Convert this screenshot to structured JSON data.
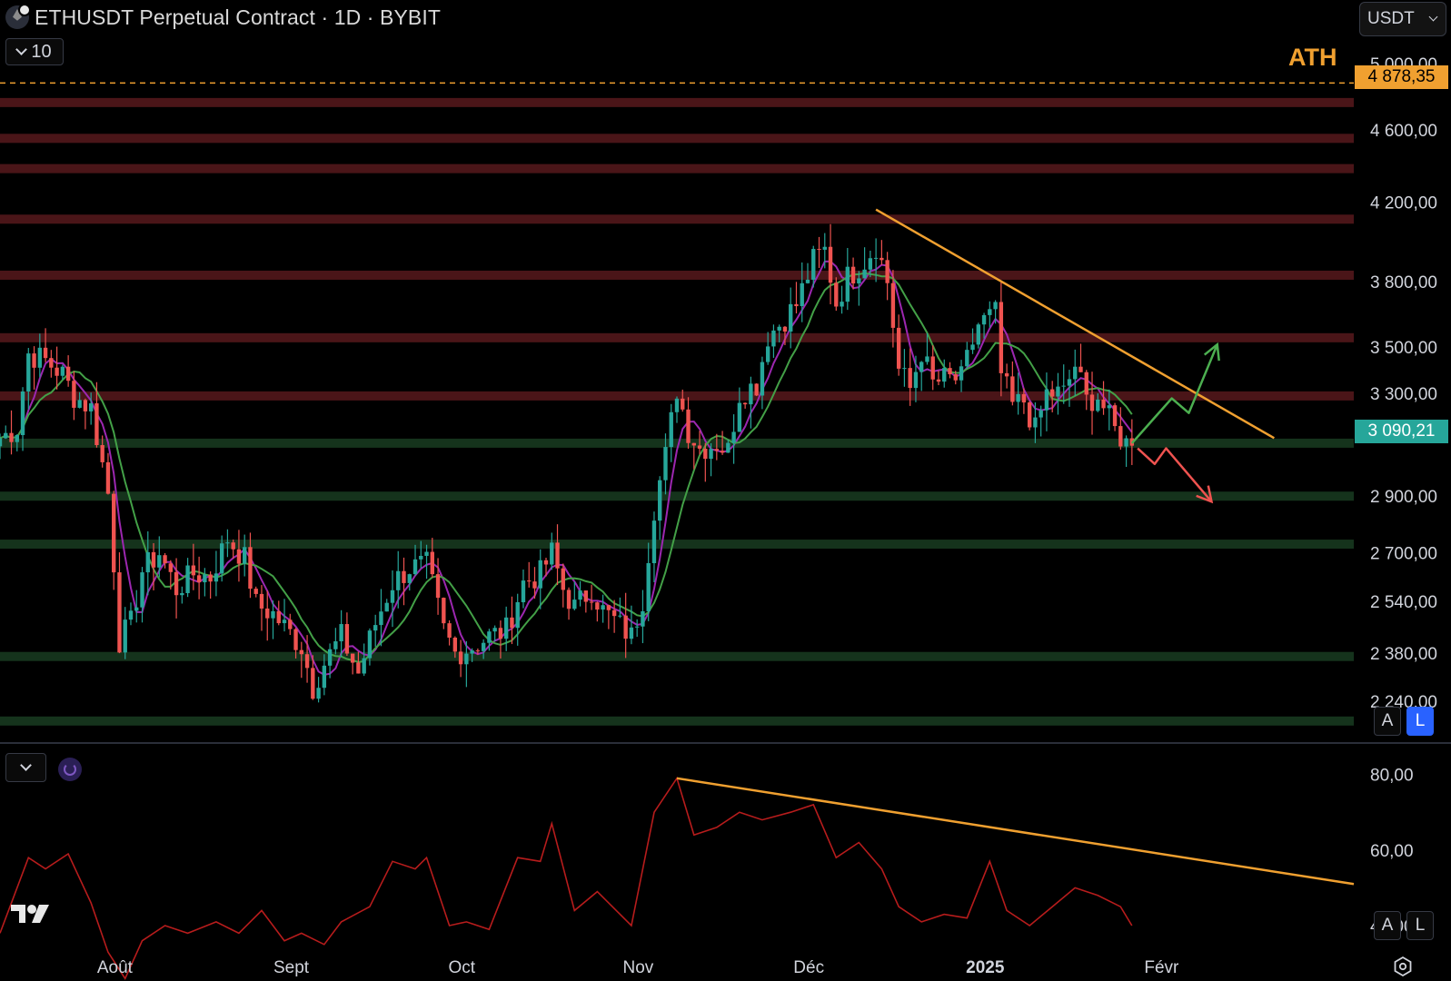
{
  "header": {
    "title": "ETHUSDT Perpetual Contract · 1D · BYBIT",
    "collapse_count": "10",
    "currency": "USDT"
  },
  "annotations": {
    "ath_label": "ATH",
    "ath_price": "4 878,35",
    "last_price": "3 090,21"
  },
  "controls": {
    "auto_label": "A",
    "log_label": "L",
    "osc_auto_label": "A",
    "osc_log_label": "L"
  },
  "colors": {
    "background": "#000000",
    "bull": "#26a69a",
    "bear": "#ef5350",
    "resistance_zone": "#4a1518",
    "support_zone": "#15331c",
    "trendline": "#f0a030",
    "ma_fast": "#9c27b0",
    "ma_slow": "#43a047",
    "osc_line": "#b71c1c",
    "arrow_up": "#4caf50",
    "arrow_down": "#ef5350",
    "accent_blue": "#2962ff"
  },
  "chart_data": [
    {
      "type": "candlestick",
      "title": "ETHUSDT Perpetual Contract · 1D · BYBIT",
      "scale": "log",
      "ylim": [
        2140,
        5150
      ],
      "y_ticks": [
        5000,
        4600,
        4200,
        3800,
        3500,
        3300,
        2900,
        2700,
        2540,
        2380,
        2240
      ],
      "y_tick_labels": [
        "5 000,00",
        "4 600,00",
        "4 200,00",
        "3 800,00",
        "3 500,00",
        "3 300,00",
        "2 900,00",
        "2 700,00",
        "2 540,00",
        "2 380,00",
        "2 240,00"
      ],
      "x_tick_labels": [
        "Août",
        "Sept",
        "Oct",
        "Nov",
        "Déc",
        "2025",
        "Févr"
      ],
      "x_tick_dates": [
        "2024-08-01",
        "2024-09-01",
        "2024-10-01",
        "2024-11-01",
        "2024-12-01",
        "2025-01-01",
        "2025-02-01"
      ],
      "date_range": [
        "2024-07-15",
        "2025-03-10"
      ],
      "ath_level": 4878.35,
      "last_price": 3090.21,
      "resistance_zones": [
        4760,
        4550,
        4380,
        4110,
        3830,
        3540,
        3290
      ],
      "support_zones": [
        3100,
        2900,
        2730,
        2370,
        2185
      ],
      "close_path": [
        [
          "2024-07-15",
          3120
        ],
        [
          "2024-07-18",
          3160
        ],
        [
          "2024-07-20",
          3470
        ],
        [
          "2024-07-23",
          3440
        ],
        [
          "2024-07-26",
          3380
        ],
        [
          "2024-07-28",
          3290
        ],
        [
          "2024-07-31",
          3240
        ],
        [
          "2024-08-03",
          2910
        ],
        [
          "2024-08-05",
          2420
        ],
        [
          "2024-08-07",
          2470
        ],
        [
          "2024-08-09",
          2640
        ],
        [
          "2024-08-12",
          2700
        ],
        [
          "2024-08-15",
          2580
        ],
        [
          "2024-08-18",
          2630
        ],
        [
          "2024-08-21",
          2620
        ],
        [
          "2024-08-24",
          2750
        ],
        [
          "2024-08-27",
          2680
        ],
        [
          "2024-08-29",
          2530
        ],
        [
          "2024-09-01",
          2500
        ],
        [
          "2024-09-03",
          2460
        ],
        [
          "2024-09-06",
          2400
        ],
        [
          "2024-09-08",
          2280
        ],
        [
          "2024-09-10",
          2350
        ],
        [
          "2024-09-13",
          2430
        ],
        [
          "2024-09-16",
          2320
        ],
        [
          "2024-09-19",
          2470
        ],
        [
          "2024-09-22",
          2600
        ],
        [
          "2024-09-25",
          2650
        ],
        [
          "2024-09-28",
          2660
        ],
        [
          "2024-10-01",
          2450
        ],
        [
          "2024-10-03",
          2380
        ],
        [
          "2024-10-06",
          2400
        ],
        [
          "2024-10-09",
          2430
        ],
        [
          "2024-10-12",
          2450
        ],
        [
          "2024-10-15",
          2600
        ],
        [
          "2024-10-18",
          2630
        ],
        [
          "2024-10-20",
          2700
        ],
        [
          "2024-10-22",
          2580
        ],
        [
          "2024-10-24",
          2520
        ],
        [
          "2024-10-27",
          2580
        ],
        [
          "2024-10-29",
          2510
        ],
        [
          "2024-10-31",
          2480
        ],
        [
          "2024-11-03",
          2430
        ],
        [
          "2024-11-05",
          2550
        ],
        [
          "2024-11-07",
          2860
        ],
        [
          "2024-11-09",
          3050
        ],
        [
          "2024-11-11",
          3320
        ],
        [
          "2024-11-13",
          3150
        ],
        [
          "2024-11-15",
          3080
        ],
        [
          "2024-11-18",
          3100
        ],
        [
          "2024-11-20",
          3070
        ],
        [
          "2024-11-22",
          3300
        ],
        [
          "2024-11-25",
          3340
        ],
        [
          "2024-11-27",
          3550
        ],
        [
          "2024-11-29",
          3600
        ],
        [
          "2024-12-02",
          3690
        ],
        [
          "2024-12-05",
          3900
        ],
        [
          "2024-12-07",
          3950
        ],
        [
          "2024-12-09",
          3700
        ],
        [
          "2024-12-11",
          3820
        ],
        [
          "2024-12-14",
          3900
        ],
        [
          "2024-12-16",
          3980
        ],
        [
          "2024-12-18",
          3800
        ],
        [
          "2024-12-20",
          3400
        ],
        [
          "2024-12-22",
          3320
        ],
        [
          "2024-12-24",
          3480
        ],
        [
          "2024-12-26",
          3340
        ],
        [
          "2024-12-28",
          3360
        ],
        [
          "2024-12-31",
          3360
        ],
        [
          "2025-01-03",
          3600
        ],
        [
          "2025-01-06",
          3650
        ],
        [
          "2025-01-07",
          3380
        ],
        [
          "2025-01-09",
          3250
        ],
        [
          "2025-01-11",
          3270
        ],
        [
          "2025-01-13",
          3150
        ],
        [
          "2025-01-15",
          3300
        ],
        [
          "2025-01-18",
          3300
        ],
        [
          "2025-01-20",
          3420
        ],
        [
          "2025-01-22",
          3270
        ],
        [
          "2025-01-24",
          3290
        ],
        [
          "2025-01-27",
          3150
        ],
        [
          "2025-01-29",
          3100
        ],
        [
          "2025-01-30",
          3090
        ]
      ],
      "trendline": {
        "from": [
          "2024-12-16",
          4160
        ],
        "to": [
          "2025-02-24",
          3120
        ]
      },
      "projection_up": [
        [
          "2025-01-30",
          3100
        ],
        [
          "2025-02-06",
          3280
        ],
        [
          "2025-02-09",
          3220
        ],
        [
          "2025-02-14",
          3510
        ]
      ],
      "projection_down": [
        [
          "2025-01-31",
          3080
        ],
        [
          "2025-02-03",
          3020
        ],
        [
          "2025-02-05",
          3080
        ],
        [
          "2025-02-13",
          2880
        ]
      ]
    },
    {
      "type": "line",
      "ylim": [
        34,
        84
      ],
      "y_ticks": [
        80,
        60,
        40
      ],
      "y_tick_labels": [
        "80,00",
        "60,00",
        "40,00"
      ],
      "line_path": [
        [
          "2024-07-15",
          38
        ],
        [
          "2024-07-20",
          58
        ],
        [
          "2024-07-23",
          55
        ],
        [
          "2024-07-27",
          59
        ],
        [
          "2024-07-31",
          46
        ],
        [
          "2024-08-03",
          33
        ],
        [
          "2024-08-06",
          26
        ],
        [
          "2024-08-09",
          36
        ],
        [
          "2024-08-13",
          40
        ],
        [
          "2024-08-17",
          38
        ],
        [
          "2024-08-22",
          41
        ],
        [
          "2024-08-26",
          38
        ],
        [
          "2024-08-30",
          44
        ],
        [
          "2024-09-03",
          36
        ],
        [
          "2024-09-06",
          38
        ],
        [
          "2024-09-10",
          35
        ],
        [
          "2024-09-13",
          41
        ],
        [
          "2024-09-18",
          45
        ],
        [
          "2024-09-22",
          57
        ],
        [
          "2024-09-26",
          55
        ],
        [
          "2024-09-28",
          58
        ],
        [
          "2024-10-02",
          40
        ],
        [
          "2024-10-05",
          41
        ],
        [
          "2024-10-09",
          39
        ],
        [
          "2024-10-14",
          58
        ],
        [
          "2024-10-18",
          57
        ],
        [
          "2024-10-20",
          67
        ],
        [
          "2024-10-24",
          44
        ],
        [
          "2024-10-28",
          49
        ],
        [
          "2024-11-03",
          40
        ],
        [
          "2024-11-07",
          70
        ],
        [
          "2024-11-11",
          79
        ],
        [
          "2024-11-14",
          64
        ],
        [
          "2024-11-18",
          66
        ],
        [
          "2024-11-22",
          70
        ],
        [
          "2024-11-26",
          68
        ],
        [
          "2024-12-01",
          70
        ],
        [
          "2024-12-05",
          72
        ],
        [
          "2024-12-09",
          58
        ],
        [
          "2024-12-13",
          62
        ],
        [
          "2024-12-17",
          55
        ],
        [
          "2024-12-20",
          45
        ],
        [
          "2024-12-24",
          41
        ],
        [
          "2024-12-28",
          43
        ],
        [
          "2025-01-01",
          42
        ],
        [
          "2025-01-05",
          57
        ],
        [
          "2025-01-08",
          44
        ],
        [
          "2025-01-12",
          40
        ],
        [
          "2025-01-16",
          45
        ],
        [
          "2025-01-20",
          50
        ],
        [
          "2025-01-24",
          48
        ],
        [
          "2025-01-28",
          45
        ],
        [
          "2025-01-30",
          40
        ]
      ],
      "trendline": {
        "from": [
          "2024-11-11",
          79
        ],
        "to": [
          "2025-03-10",
          51
        ]
      }
    }
  ]
}
